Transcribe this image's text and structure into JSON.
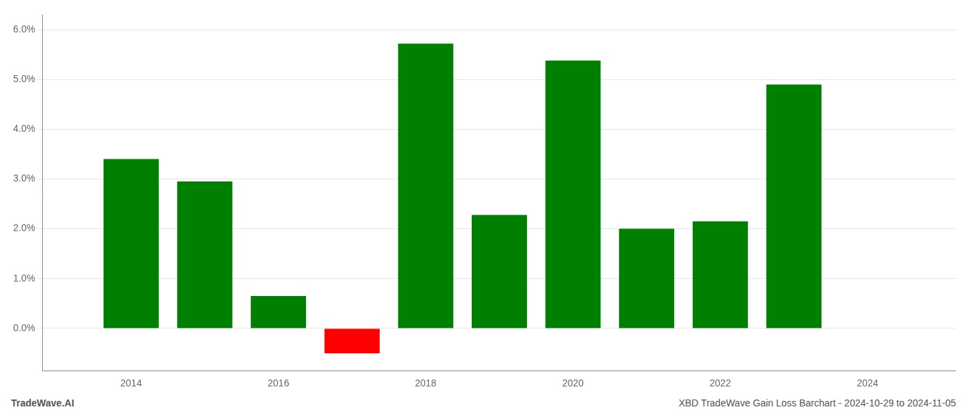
{
  "chart_data": {
    "type": "bar",
    "title": "XBD TradeWave Gain Loss Barchart - 2024-10-29 to 2024-11-05",
    "annotations": [
      "TradeWave.AI"
    ],
    "x": [
      2014,
      2015,
      2016,
      2017,
      2018,
      2019,
      2020,
      2021,
      2022,
      2023
    ],
    "values": [
      0.034,
      0.0295,
      0.0065,
      -0.005,
      0.0572,
      0.0228,
      0.0538,
      0.02,
      0.0215,
      0.049
    ],
    "colors": [
      "#008000",
      "#008000",
      "#008000",
      "#ff0000",
      "#008000",
      "#008000",
      "#008000",
      "#008000",
      "#008000",
      "#008000"
    ],
    "xlim": [
      2012.8,
      2025.2
    ],
    "xticks": [
      2014,
      2016,
      2018,
      2020,
      2022,
      2024
    ],
    "ylim": [
      -0.0085,
      0.063
    ],
    "yticks": [
      {
        "value": 0.0,
        "label": "0.0%"
      },
      {
        "value": 0.01,
        "label": "1.0%"
      },
      {
        "value": 0.02,
        "label": "2.0%"
      },
      {
        "value": 0.03,
        "label": "3.0%"
      },
      {
        "value": 0.04,
        "label": "4.0%"
      },
      {
        "value": 0.05,
        "label": "5.0%"
      },
      {
        "value": 0.06,
        "label": "6.0%"
      }
    ],
    "grid": true
  }
}
